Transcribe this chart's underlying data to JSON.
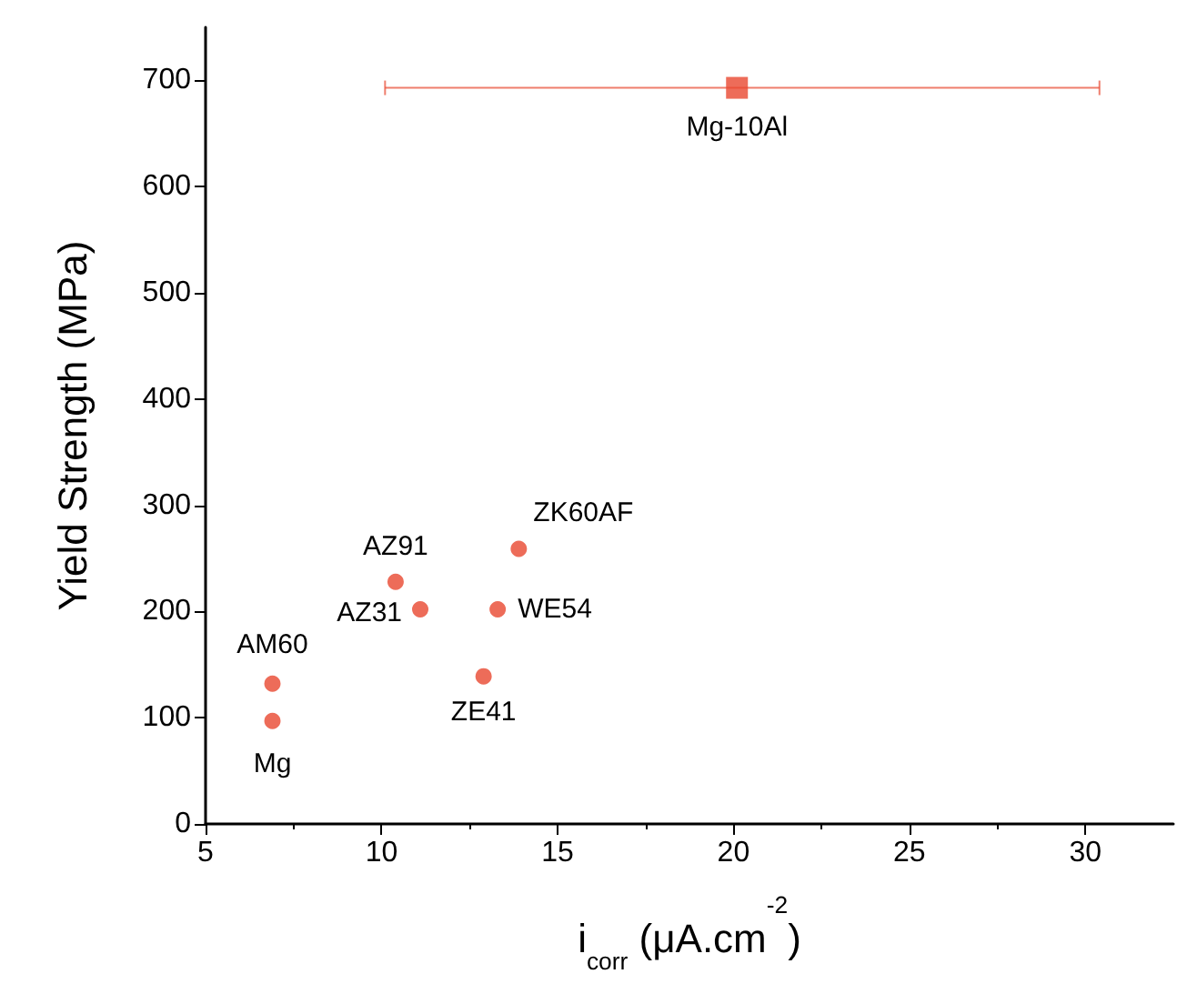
{
  "chart_data": {
    "type": "scatter",
    "xlabel": "i$_{corr}$ (μA.cm$^{-2}$)",
    "ylabel": "Yield Strength (MPa)",
    "xlim": [
      5,
      32.5
    ],
    "xticks": [
      5,
      10,
      15,
      20,
      25,
      30
    ],
    "ylim": [
      0,
      750
    ],
    "yticks": [
      0,
      100,
      200,
      300,
      400,
      500,
      600,
      700
    ],
    "grid": false,
    "series": [
      {
        "color": "#e8472f",
        "marker": "circle",
        "x": [
          6.9,
          6.9,
          10.4,
          11.1,
          13.3,
          12.9,
          13.9
        ],
        "values": [
          97,
          132,
          228,
          202,
          202,
          139,
          259
        ]
      },
      {
        "color": "#e8472f",
        "marker": "square",
        "x": [
          20.1
        ],
        "values": [
          693
        ],
        "xerrors": [
          [
            10.1,
            30.4
          ]
        ]
      }
    ],
    "annotations": [
      {
        "text": "Mg",
        "x": 6.9,
        "y": 97
      },
      {
        "text": "AM60",
        "x": 6.9,
        "y": 132
      },
      {
        "text": "AZ91",
        "x": 10.4,
        "y": 228
      },
      {
        "text": "AZ31",
        "x": 11.1,
        "y": 202
      },
      {
        "text": "WE54",
        "x": 13.3,
        "y": 202
      },
      {
        "text": "ZE41",
        "x": 12.9,
        "y": 139
      },
      {
        "text": "ZK60AF",
        "x": 13.9,
        "y": 259
      },
      {
        "text": "Mg-10Al",
        "x": 20.1,
        "y": 693
      }
    ]
  }
}
